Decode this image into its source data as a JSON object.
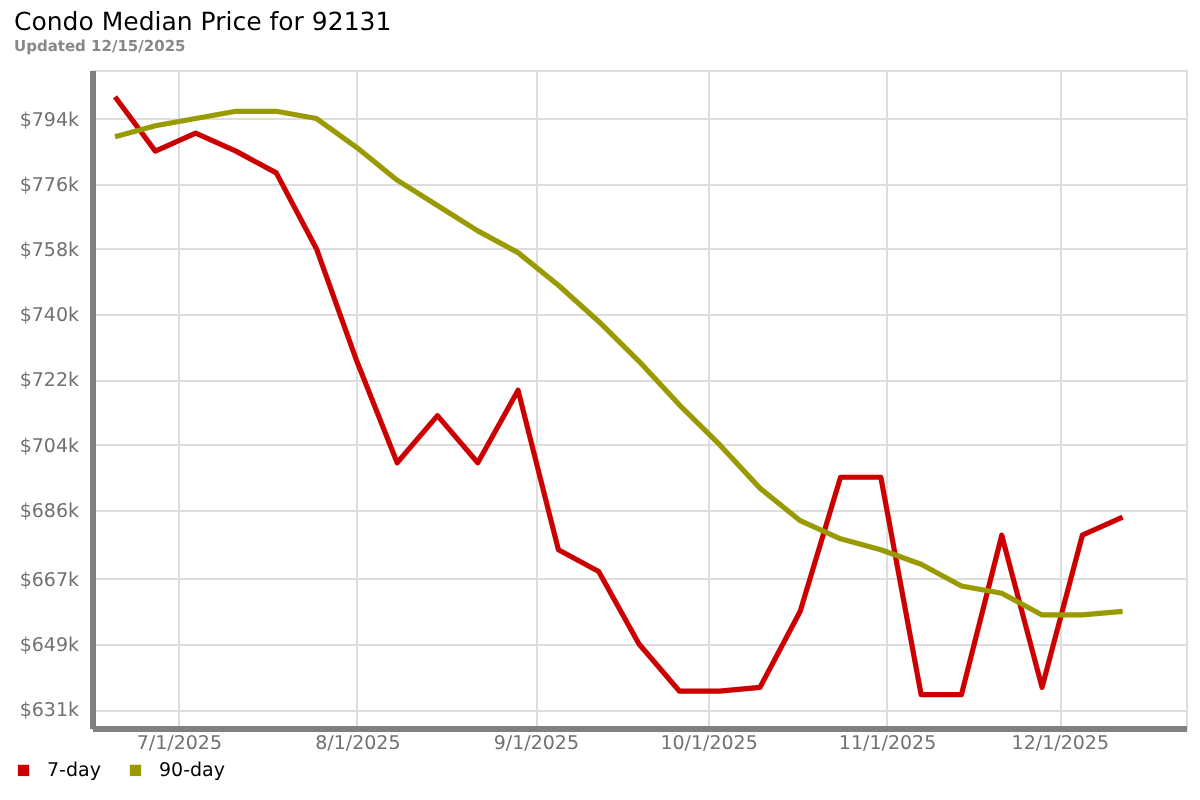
{
  "chart_data": {
    "type": "line",
    "title": "Condo Median Price for 92131",
    "subtitle": "Updated 12/15/2025",
    "x": [
      "2025-06-20",
      "2025-06-27",
      "2025-07-04",
      "2025-07-11",
      "2025-07-18",
      "2025-07-25",
      "2025-08-01",
      "2025-08-08",
      "2025-08-15",
      "2025-08-22",
      "2025-08-29",
      "2025-09-05",
      "2025-09-12",
      "2025-09-19",
      "2025-09-26",
      "2025-10-03",
      "2025-10-10",
      "2025-10-17",
      "2025-10-24",
      "2025-10-31",
      "2025-11-07",
      "2025-11-14",
      "2025-11-21",
      "2025-11-28",
      "2025-12-05",
      "2025-12-12"
    ],
    "series": [
      {
        "name": "7-day",
        "color": "#cc0000",
        "values": [
          800,
          785,
          790,
          785,
          779,
          758,
          727,
          699,
          712,
          699,
          719,
          675,
          669,
          649,
          636,
          636,
          637,
          658,
          695,
          695,
          635,
          635,
          679,
          637,
          679,
          684
        ]
      },
      {
        "name": "90-day",
        "color": "#999900",
        "values": [
          789,
          792,
          794,
          796,
          796,
          794,
          786,
          777,
          770,
          763,
          757,
          748,
          738,
          727,
          715,
          704,
          692,
          683,
          678,
          675,
          671,
          665,
          663,
          657,
          657,
          658
        ]
      }
    ],
    "xlim": [
      "2025-06-16",
      "2025-12-23"
    ],
    "xticks": [
      {
        "value": "2025-07-01",
        "label": "7/1/2025"
      },
      {
        "value": "2025-08-01",
        "label": "8/1/2025"
      },
      {
        "value": "2025-09-01",
        "label": "9/1/2025"
      },
      {
        "value": "2025-10-01",
        "label": "10/1/2025"
      },
      {
        "value": "2025-11-01",
        "label": "11/1/2025"
      },
      {
        "value": "2025-12-01",
        "label": "12/1/2025"
      }
    ],
    "ylim": [
      625.8,
      807.4
    ],
    "yticks": [
      {
        "value": 631,
        "label": "$631k"
      },
      {
        "value": 649,
        "label": "$649k"
      },
      {
        "value": 667,
        "label": "$667k"
      },
      {
        "value": 686,
        "label": "$686k"
      },
      {
        "value": 704,
        "label": "$704k"
      },
      {
        "value": 722,
        "label": "$722k"
      },
      {
        "value": 740,
        "label": "$740k"
      },
      {
        "value": 758,
        "label": "$758k"
      },
      {
        "value": 776,
        "label": "$776k"
      },
      {
        "value": 794,
        "label": "$794k"
      }
    ],
    "grid": true,
    "legend": "bottom left",
    "line_style": "solid"
  }
}
